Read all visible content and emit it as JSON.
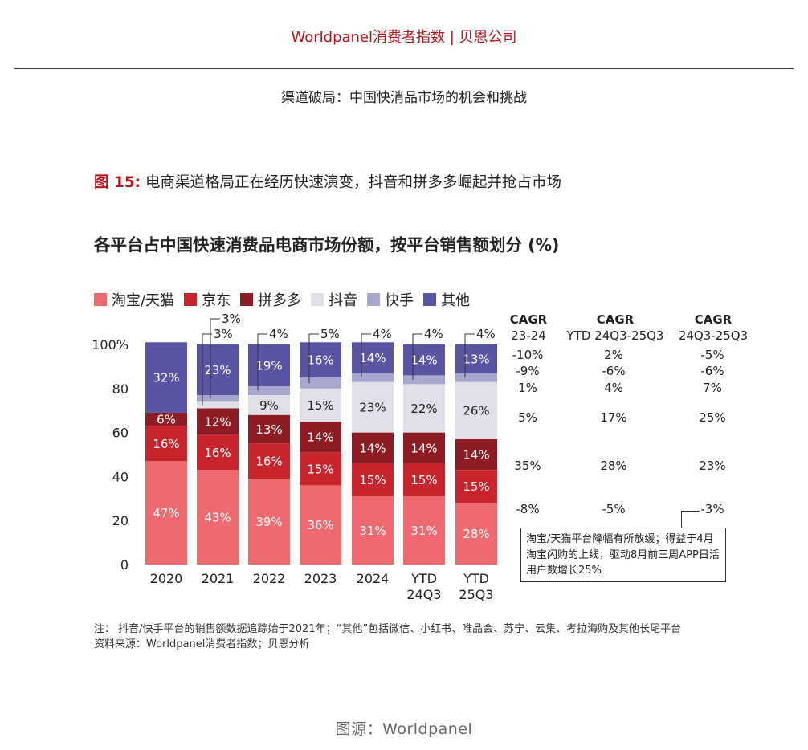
{
  "header": {
    "brand": "Worldpanel消费者指数 | 贝恩公司"
  },
  "doc_title": "渠道破局：中国快消品市场的机会和挑战",
  "figure": {
    "number": "图 15:",
    "caption": "电商渠道格局正在经历快速演变，抖音和拼多多崛起并抢占市场"
  },
  "chart_title": "各平台占中国快速消费品电商市场份额，按平台销售额划分 (%)",
  "colors": {
    "taobao": "#ef6a6f",
    "jd": "#c8242c",
    "pdd": "#8e1c24",
    "douyin": "#dfe0e8",
    "kuaishou": "#a7a6cf",
    "other": "#5a55a3"
  },
  "chart_data": {
    "type": "bar",
    "stacked": true,
    "title": "各平台占中国快速消费品电商市场份额，按平台销售额划分 (%)",
    "categories": [
      "2020",
      "2021",
      "2022",
      "2023",
      "2024",
      "YTD\n24Q3",
      "YTD\n25Q3"
    ],
    "ylim": [
      0,
      100
    ],
    "yticks": [
      "0",
      "20",
      "40",
      "60",
      "80",
      "100%"
    ],
    "legend_position": "top-left",
    "series": [
      {
        "key": "taobao",
        "name": "淘宝/天猫",
        "values": [
          47,
          43,
          39,
          36,
          31,
          31,
          28
        ]
      },
      {
        "key": "jd",
        "name": "京东",
        "values": [
          16,
          16,
          16,
          15,
          15,
          15,
          15
        ]
      },
      {
        "key": "pdd",
        "name": "拼多多",
        "values": [
          6,
          12,
          13,
          14,
          14,
          14,
          14
        ]
      },
      {
        "key": "douyin",
        "name": "抖音",
        "values": [
          0,
          3,
          9,
          15,
          23,
          22,
          26
        ]
      },
      {
        "key": "kuaishou",
        "name": "快手",
        "values": [
          0,
          3,
          4,
          5,
          4,
          4,
          4
        ]
      },
      {
        "key": "other",
        "name": "其他",
        "values": [
          32,
          23,
          19,
          16,
          14,
          14,
          13
        ]
      }
    ],
    "cagr_columns": [
      {
        "title": "CAGR",
        "subtitle": "23-24",
        "values": [
          "-10%",
          "-9%",
          "1%",
          "5%",
          "35%",
          "-8%"
        ]
      },
      {
        "title": "CAGR",
        "subtitle": "YTD 24Q3-25Q3",
        "values": [
          "2%",
          "-6%",
          "4%",
          "17%",
          "28%",
          "-5%"
        ]
      },
      {
        "title": "CAGR",
        "subtitle": "24Q3-25Q3",
        "values": [
          "-5%",
          "-6%",
          "7%",
          "25%",
          "23%",
          "-3%"
        ]
      }
    ],
    "annotation": "淘宝/天猫平台降幅有所放缓；得益于4月淘宝闪购的上线，驱动8月前三周APP日活用户数增长25%"
  },
  "footnote": {
    "line1": "注：   抖音/快手平台的销售额数据追踪始于2021年；“其他”包括微信、小红书、唯品会、苏宁、云集、考拉海购及其他长尾平台",
    "line2": "资料来源：Worldpanel消费者指数；贝恩分析"
  },
  "source": "图源：Worldpanel"
}
